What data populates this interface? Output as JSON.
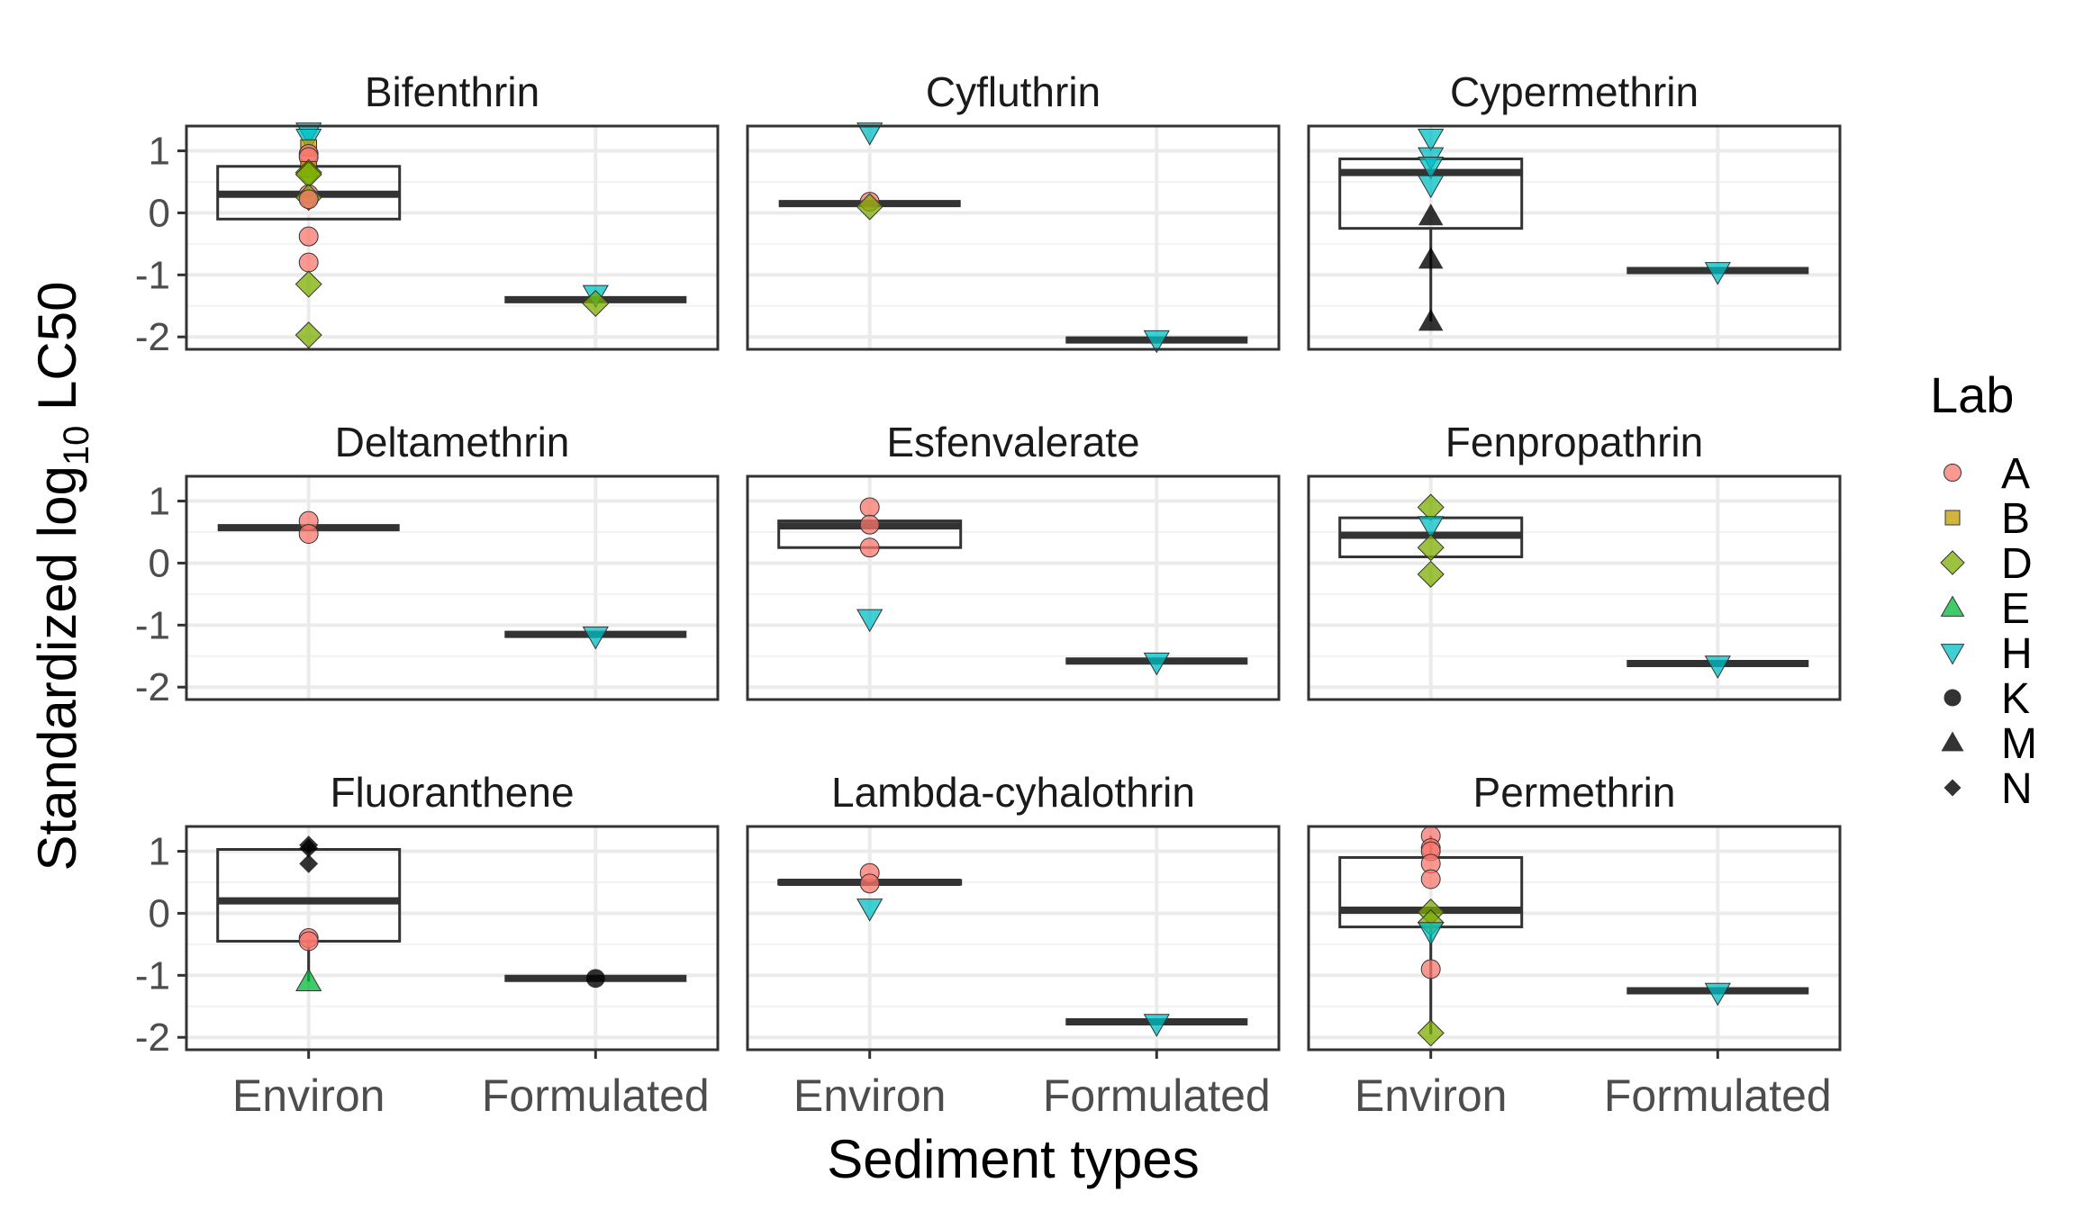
{
  "chart_data": {
    "type": "boxplot",
    "facets": [
      "Bifenthrin",
      "Cyfluthrin",
      "Cypermethrin",
      "Deltamethrin",
      "Esfenvalerate",
      "Fenpropathrin",
      "Fluoranthene",
      "Lambda-cyhalothrin",
      "Permethrin"
    ],
    "categories": [
      "Environ",
      "Formulated"
    ],
    "xlabel": "Sediment types",
    "ylabel_main": "Standardized log",
    "ylabel_sub": "10",
    "ylabel_tail": " LC50",
    "yticks": [
      1,
      0,
      -1,
      -2
    ],
    "ylim": [
      -2.2,
      1.4
    ],
    "grid": true,
    "legend": {
      "title": "Lab",
      "placement": "right",
      "entries": [
        {
          "label": "A",
          "shape": "circle",
          "color": "#F8766D"
        },
        {
          "label": "B",
          "shape": "square",
          "color": "#C49A00"
        },
        {
          "label": "D",
          "shape": "diamond",
          "color": "#7CAE00"
        },
        {
          "label": "E",
          "shape": "triangle-up",
          "color": "#00BA38"
        },
        {
          "label": "H",
          "shape": "triangle-down",
          "color": "#00BFC4"
        },
        {
          "label": "K",
          "shape": "circle",
          "color": "#000000"
        },
        {
          "label": "M",
          "shape": "triangle-up",
          "color": "#000000"
        },
        {
          "label": "N",
          "shape": "diamond-small",
          "color": "#000000"
        }
      ]
    },
    "panels": [
      {
        "title": "Bifenthrin",
        "boxes": [
          {
            "cat": "Environ",
            "q1": -0.1,
            "median": 0.3,
            "q3": 0.75,
            "wlo": -0.1,
            "whi": 0.75
          },
          {
            "cat": "Formulated",
            "q1": -1.4,
            "median": -1.4,
            "q3": -1.4,
            "wlo": -1.4,
            "whi": -1.4
          }
        ],
        "points": [
          {
            "cat": "Environ",
            "lab": "H",
            "y": 1.3
          },
          {
            "cat": "Environ",
            "lab": "H",
            "y": 1.2
          },
          {
            "cat": "Environ",
            "lab": "B",
            "y": 1.05
          },
          {
            "cat": "Environ",
            "lab": "A",
            "y": 0.95
          },
          {
            "cat": "Environ",
            "lab": "A",
            "y": 0.9
          },
          {
            "cat": "Environ",
            "lab": "B",
            "y": 0.7
          },
          {
            "cat": "Environ",
            "lab": "D",
            "y": 0.65
          },
          {
            "cat": "Environ",
            "lab": "D",
            "y": 0.62
          },
          {
            "cat": "Environ",
            "lab": "A",
            "y": 0.3
          },
          {
            "cat": "Environ",
            "lab": "D",
            "y": 0.25
          },
          {
            "cat": "Environ",
            "lab": "A",
            "y": 0.22
          },
          {
            "cat": "Environ",
            "lab": "A",
            "y": -0.38
          },
          {
            "cat": "Environ",
            "lab": "A",
            "y": -0.8
          },
          {
            "cat": "Environ",
            "lab": "D",
            "y": -1.15
          },
          {
            "cat": "Environ",
            "lab": "D",
            "y": -1.97
          },
          {
            "cat": "Formulated",
            "lab": "H",
            "y": -1.32
          },
          {
            "cat": "Formulated",
            "lab": "D",
            "y": -1.46
          }
        ]
      },
      {
        "title": "Cyfluthrin",
        "boxes": [
          {
            "cat": "Environ",
            "q1": 0.15,
            "median": 0.15,
            "q3": 0.15,
            "wlo": 0.15,
            "whi": 0.15
          },
          {
            "cat": "Formulated",
            "q1": -2.05,
            "median": -2.05,
            "q3": -2.05,
            "wlo": -2.05,
            "whi": -2.05
          }
        ],
        "points": [
          {
            "cat": "Environ",
            "lab": "H",
            "y": 1.3
          },
          {
            "cat": "Environ",
            "lab": "A",
            "y": 0.18
          },
          {
            "cat": "Environ",
            "lab": "D",
            "y": 0.1
          },
          {
            "cat": "Formulated",
            "lab": "H",
            "y": -2.05
          }
        ]
      },
      {
        "title": "Cypermethrin",
        "boxes": [
          {
            "cat": "Environ",
            "q1": -0.25,
            "median": 0.65,
            "q3": 0.87,
            "wlo": -1.75,
            "whi": 0.87
          },
          {
            "cat": "Formulated",
            "q1": -0.93,
            "median": -0.93,
            "q3": -0.93,
            "wlo": -0.93,
            "whi": -0.93
          }
        ],
        "points": [
          {
            "cat": "Environ",
            "lab": "H",
            "y": 1.2
          },
          {
            "cat": "Environ",
            "lab": "H",
            "y": 0.9
          },
          {
            "cat": "Environ",
            "lab": "H",
            "y": 0.75
          },
          {
            "cat": "Environ",
            "lab": "H",
            "y": 0.45
          },
          {
            "cat": "Environ",
            "lab": "M",
            "y": -0.05
          },
          {
            "cat": "Environ",
            "lab": "M",
            "y": -0.75
          },
          {
            "cat": "Environ",
            "lab": "M",
            "y": -1.75
          },
          {
            "cat": "Formulated",
            "lab": "H",
            "y": -0.95
          }
        ]
      },
      {
        "title": "Deltamethrin",
        "boxes": [
          {
            "cat": "Environ",
            "q1": 0.57,
            "median": 0.57,
            "q3": 0.57,
            "wlo": 0.57,
            "whi": 0.57
          },
          {
            "cat": "Formulated",
            "q1": -1.15,
            "median": -1.15,
            "q3": -1.15,
            "wlo": -1.15,
            "whi": -1.15
          }
        ],
        "points": [
          {
            "cat": "Environ",
            "lab": "A",
            "y": 0.68
          },
          {
            "cat": "Environ",
            "lab": "A",
            "y": 0.47
          },
          {
            "cat": "Formulated",
            "lab": "H",
            "y": -1.18
          }
        ]
      },
      {
        "title": "Esfenvalerate",
        "boxes": [
          {
            "cat": "Environ",
            "q1": 0.25,
            "median": 0.6,
            "q3": 0.68,
            "wlo": 0.25,
            "whi": 0.68
          },
          {
            "cat": "Formulated",
            "q1": -1.58,
            "median": -1.58,
            "q3": -1.58,
            "wlo": -1.58,
            "whi": -1.58
          }
        ],
        "points": [
          {
            "cat": "Environ",
            "lab": "A",
            "y": 0.9
          },
          {
            "cat": "Environ",
            "lab": "A",
            "y": 0.62
          },
          {
            "cat": "Environ",
            "lab": "A",
            "y": 0.25
          },
          {
            "cat": "Environ",
            "lab": "H",
            "y": -0.9
          },
          {
            "cat": "Formulated",
            "lab": "H",
            "y": -1.6
          }
        ]
      },
      {
        "title": "Fenpropathrin",
        "boxes": [
          {
            "cat": "Environ",
            "q1": 0.1,
            "median": 0.45,
            "q3": 0.73,
            "wlo": 0.1,
            "whi": 0.73
          },
          {
            "cat": "Formulated",
            "q1": -1.62,
            "median": -1.62,
            "q3": -1.62,
            "wlo": -1.62,
            "whi": -1.62
          }
        ],
        "points": [
          {
            "cat": "Environ",
            "lab": "D",
            "y": 0.9
          },
          {
            "cat": "Environ",
            "lab": "H",
            "y": 0.6
          },
          {
            "cat": "Environ",
            "lab": "D",
            "y": 0.25
          },
          {
            "cat": "Environ",
            "lab": "D",
            "y": -0.18
          },
          {
            "cat": "Formulated",
            "lab": "H",
            "y": -1.65
          }
        ]
      },
      {
        "title": "Fluoranthene",
        "boxes": [
          {
            "cat": "Environ",
            "q1": -0.45,
            "median": 0.2,
            "q3": 1.03,
            "wlo": -1.1,
            "whi": 1.1
          },
          {
            "cat": "Formulated",
            "q1": -1.05,
            "median": -1.05,
            "q3": -1.05,
            "wlo": -1.05,
            "whi": -1.05
          }
        ],
        "points": [
          {
            "cat": "Environ",
            "lab": "N",
            "y": 1.1
          },
          {
            "cat": "Environ",
            "lab": "N",
            "y": 1.05
          },
          {
            "cat": "Environ",
            "lab": "N",
            "y": 0.8
          },
          {
            "cat": "Environ",
            "lab": "A",
            "y": -0.4
          },
          {
            "cat": "Environ",
            "lab": "A",
            "y": -0.45
          },
          {
            "cat": "Environ",
            "lab": "E",
            "y": -1.1
          },
          {
            "cat": "Formulated",
            "lab": "K",
            "y": -1.05
          }
        ]
      },
      {
        "title": "Lambda-cyhalothrin",
        "boxes": [
          {
            "cat": "Environ",
            "q1": 0.47,
            "median": 0.5,
            "q3": 0.53,
            "wlo": 0.47,
            "whi": 0.53
          },
          {
            "cat": "Formulated",
            "q1": -1.75,
            "median": -1.75,
            "q3": -1.75,
            "wlo": -1.75,
            "whi": -1.75
          }
        ],
        "points": [
          {
            "cat": "Environ",
            "lab": "A",
            "y": 0.65
          },
          {
            "cat": "Environ",
            "lab": "A",
            "y": 0.48
          },
          {
            "cat": "Environ",
            "lab": "H",
            "y": 0.08
          },
          {
            "cat": "Formulated",
            "lab": "H",
            "y": -1.78
          }
        ]
      },
      {
        "title": "Permethrin",
        "boxes": [
          {
            "cat": "Environ",
            "q1": -0.22,
            "median": 0.05,
            "q3": 0.9,
            "wlo": -1.95,
            "whi": 1.25
          },
          {
            "cat": "Formulated",
            "q1": -1.25,
            "median": -1.25,
            "q3": -1.25,
            "wlo": -1.25,
            "whi": -1.25
          }
        ],
        "points": [
          {
            "cat": "Environ",
            "lab": "A",
            "y": 1.25
          },
          {
            "cat": "Environ",
            "lab": "A",
            "y": 1.05
          },
          {
            "cat": "Environ",
            "lab": "A",
            "y": 1.0
          },
          {
            "cat": "Environ",
            "lab": "A",
            "y": 0.8
          },
          {
            "cat": "Environ",
            "lab": "A",
            "y": 0.55
          },
          {
            "cat": "Environ",
            "lab": "D",
            "y": 0.02
          },
          {
            "cat": "Environ",
            "lab": "D",
            "y": -0.15
          },
          {
            "cat": "Environ",
            "lab": "H",
            "y": -0.3
          },
          {
            "cat": "Environ",
            "lab": "A",
            "y": -0.9
          },
          {
            "cat": "Environ",
            "lab": "D",
            "y": -1.93
          },
          {
            "cat": "Formulated",
            "lab": "H",
            "y": -1.28
          }
        ]
      }
    ]
  }
}
